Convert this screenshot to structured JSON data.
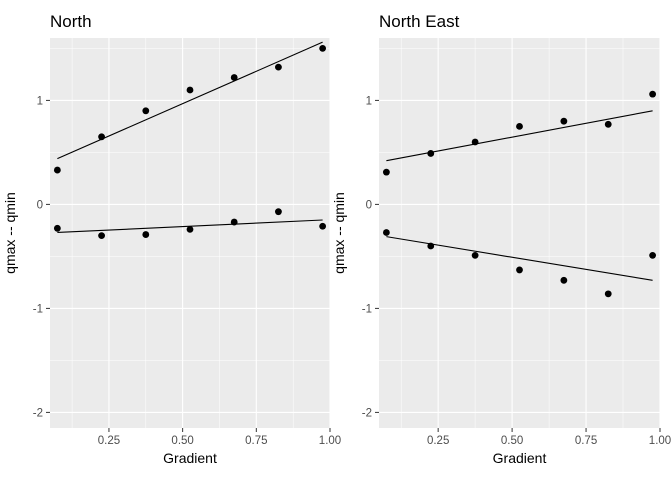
{
  "chart_data": [
    {
      "type": "scatter",
      "title": "North",
      "xlabel": "Gradient",
      "ylabel": "qmax -- qmin",
      "xlim": [
        0.05,
        1.0
      ],
      "ylim": [
        -2.15,
        1.6
      ],
      "x_ticks": [
        0.25,
        0.5,
        0.75,
        1.0
      ],
      "x_tick_labels": [
        "0.25",
        "0.50",
        "0.75",
        "1.00"
      ],
      "y_ticks": [
        -2,
        -1,
        0,
        1
      ],
      "y_tick_labels": [
        "-2",
        "-1",
        "0",
        "1"
      ],
      "grid": true,
      "series": [
        {
          "x": [
            0.075,
            0.225,
            0.375,
            0.525,
            0.675,
            0.825,
            0.975
          ],
          "values": [
            0.33,
            0.65,
            0.9,
            1.1,
            1.22,
            1.32,
            1.5
          ],
          "fit": [
            [
              0.075,
              0.44
            ],
            [
              0.975,
              1.56
            ]
          ]
        },
        {
          "x": [
            0.075,
            0.225,
            0.375,
            0.525,
            0.675,
            0.825,
            0.975
          ],
          "values": [
            -0.23,
            -0.3,
            -0.29,
            -0.24,
            -0.17,
            -0.07,
            -0.21
          ],
          "fit": [
            [
              0.075,
              -0.27
            ],
            [
              0.975,
              -0.15
            ]
          ]
        }
      ]
    },
    {
      "type": "scatter",
      "title": "North East",
      "xlabel": "Gradient",
      "ylabel": "qmax -- qmin",
      "xlim": [
        0.05,
        1.0
      ],
      "ylim": [
        -2.15,
        1.6
      ],
      "x_ticks": [
        0.25,
        0.5,
        0.75,
        1.0
      ],
      "x_tick_labels": [
        "0.25",
        "0.50",
        "0.75",
        "1.00"
      ],
      "y_ticks": [
        -2,
        -1,
        0,
        1
      ],
      "y_tick_labels": [
        "-2",
        "-1",
        "0",
        "1"
      ],
      "grid": true,
      "series": [
        {
          "x": [
            0.075,
            0.225,
            0.375,
            0.525,
            0.675,
            0.825,
            0.975
          ],
          "values": [
            0.31,
            0.49,
            0.6,
            0.75,
            0.8,
            0.77,
            1.06
          ],
          "fit": [
            [
              0.075,
              0.42
            ],
            [
              0.975,
              0.9
            ]
          ]
        },
        {
          "x": [
            0.075,
            0.225,
            0.375,
            0.525,
            0.675,
            0.825,
            0.975
          ],
          "values": [
            -0.27,
            -0.4,
            -0.49,
            -0.63,
            -0.73,
            -0.86,
            -0.49
          ],
          "fit": [
            [
              0.075,
              -0.31
            ],
            [
              0.975,
              -0.73
            ]
          ]
        }
      ]
    }
  ]
}
